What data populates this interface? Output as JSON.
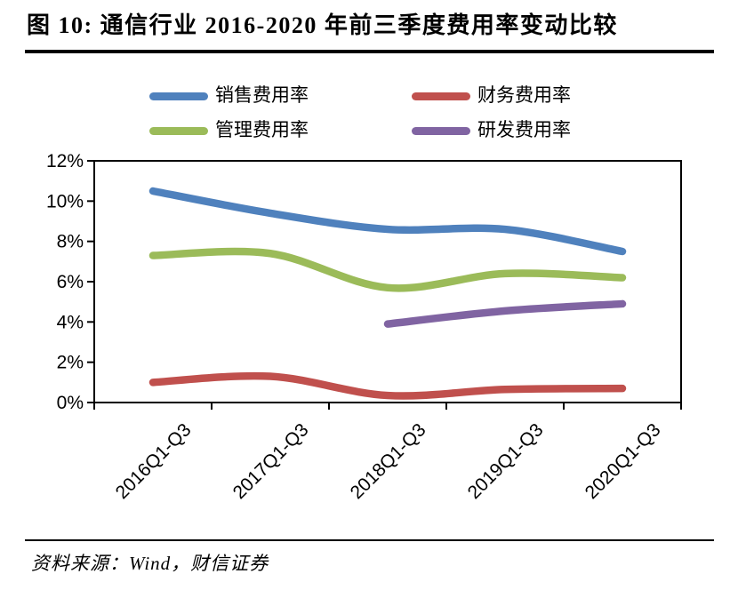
{
  "header": {
    "title": "图 10: 通信行业 2016-2020 年前三季度费用率变动比较"
  },
  "footer": {
    "source_label": "资料来源：Wind，财信证券"
  },
  "chart_data": {
    "type": "line",
    "title": "通信行业 2016-2020 年前三季度费用率变动比较",
    "xlabel": "",
    "ylabel": "",
    "categories": [
      "2016Q1-Q3",
      "2017Q1-Q3",
      "2018Q1-Q3",
      "2019Q1-Q3",
      "2020Q1-Q3"
    ],
    "series": [
      {
        "name": "销售费用率",
        "color": "#4F81BD",
        "values": [
          10.5,
          9.4,
          8.6,
          8.6,
          7.5
        ]
      },
      {
        "name": "财务费用率",
        "color": "#C0504D",
        "values": [
          1.0,
          1.3,
          0.35,
          0.65,
          0.7
        ]
      },
      {
        "name": "管理费用率",
        "color": "#9BBB59",
        "values": [
          7.3,
          7.4,
          5.7,
          6.4,
          6.2
        ]
      },
      {
        "name": "研发费用率",
        "color": "#8064A2",
        "values": [
          null,
          null,
          3.9,
          4.55,
          4.9
        ]
      }
    ],
    "ylim": [
      0,
      12
    ],
    "yticks": [
      0,
      2,
      4,
      6,
      8,
      10,
      12
    ],
    "ytick_suffix": "%",
    "grid": false,
    "smooth": true,
    "legend_position": "top",
    "axis_color": "#000000"
  }
}
